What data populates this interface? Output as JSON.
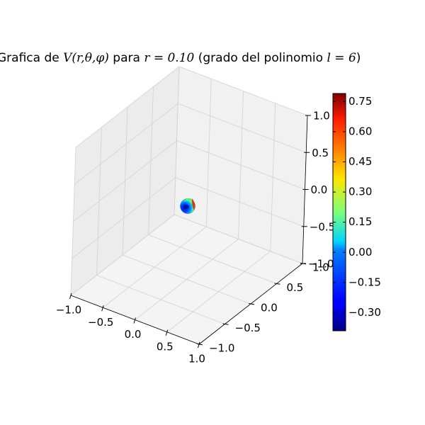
{
  "chart_data": {
    "type": "surface3d",
    "title": {
      "prefix": "Grafica de ",
      "func": "V(r,θ,φ)",
      "mid": " para ",
      "rlabel": "r = 0.10",
      "suffix": " (grado del polinomio ",
      "llabel": "l = 6",
      "end": ")"
    },
    "x_axis": {
      "range": [
        -1.0,
        1.0
      ],
      "ticks": [
        "−1.0",
        "−0.5",
        "0.0",
        "0.5",
        "1.0"
      ]
    },
    "y_axis": {
      "range": [
        -1.0,
        1.0
      ],
      "ticks": [
        "−1.0",
        "−0.5",
        "0.0",
        "0.5",
        "1.0"
      ]
    },
    "z_axis": {
      "range": [
        -1.0,
        1.0
      ],
      "ticks": [
        "−1.0",
        "−0.5",
        "0.0",
        "0.5",
        "1.0"
      ]
    },
    "grid": true,
    "sphere": {
      "center": [
        0,
        0,
        0
      ],
      "radius": 0.1
    },
    "colormap": "jet",
    "colorbar": {
      "range": [
        -0.39,
        0.79
      ],
      "ticks": [
        {
          "value": 0.75,
          "label": "0.75"
        },
        {
          "value": 0.6,
          "label": "0.60"
        },
        {
          "value": 0.45,
          "label": "0.45"
        },
        {
          "value": 0.3,
          "label": "0.30"
        },
        {
          "value": 0.15,
          "label": "0.15"
        },
        {
          "value": 0.0,
          "label": "0.00"
        },
        {
          "value": -0.15,
          "label": "−0.15"
        },
        {
          "value": -0.3,
          "label": "−0.30"
        }
      ]
    }
  }
}
